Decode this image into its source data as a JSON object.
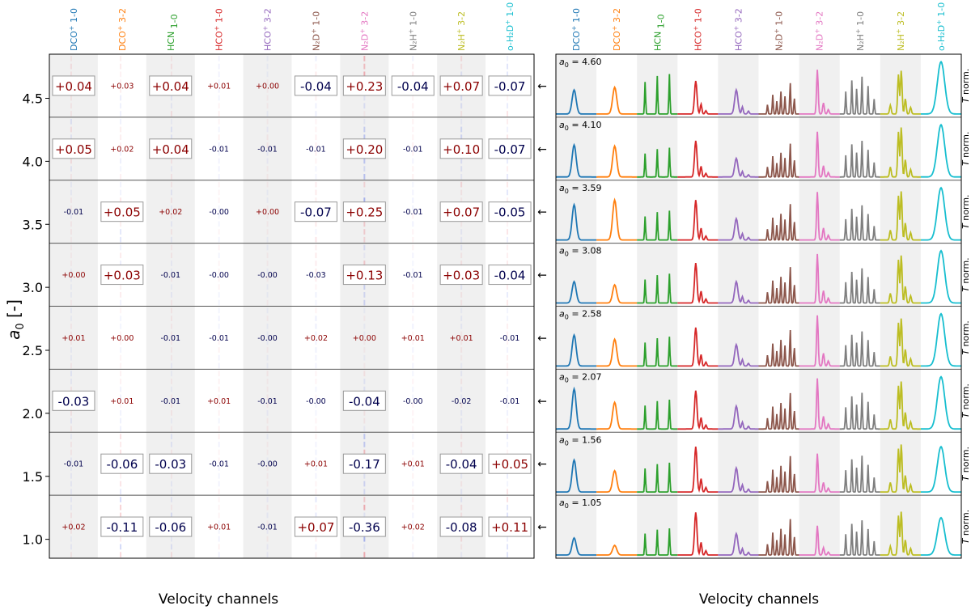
{
  "chart_data": [
    {
      "type": "heatmap",
      "panel": "left",
      "xlabel": "Velocity channels",
      "ylabel": "a0 [-]",
      "ylabel_main": "a",
      "ylabel_sub": "0",
      "ylabel_rest": " [-]",
      "ylim": [
        0.85,
        4.85
      ],
      "yticks": [
        "1.0",
        "1.5",
        "2.0",
        "2.5",
        "3.0",
        "3.5",
        "4.0",
        "4.5"
      ],
      "ytick_values": [
        1.0,
        1.5,
        2.0,
        2.5,
        3.0,
        3.5,
        4.0,
        4.5
      ],
      "lines": [
        {
          "base": "DCO",
          "sup": "+",
          "trans": "1-0",
          "color": "#1f77b4"
        },
        {
          "base": "DCO",
          "sup": "+",
          "trans": "3-2",
          "color": "#ff7f0e"
        },
        {
          "base": "HCN",
          "sup": "",
          "trans": "1-0",
          "color": "#2ca02c"
        },
        {
          "base": "HCO",
          "sup": "+",
          "trans": "1-0",
          "color": "#d62728"
        },
        {
          "base": "HCO",
          "sup": "+",
          "trans": "3-2",
          "color": "#9467bd"
        },
        {
          "base": "N₂D",
          "sup": "+",
          "trans": "1-0",
          "color": "#8c564b"
        },
        {
          "base": "N₂D",
          "sup": "+",
          "trans": "3-2",
          "color": "#e377c2"
        },
        {
          "base": "N₂H",
          "sup": "+",
          "trans": "1-0",
          "color": "#7f7f7f"
        },
        {
          "base": "N₂H",
          "sup": "+",
          "trans": "3-2",
          "color": "#bcbd22"
        },
        {
          "base": "o-H₂D",
          "sup": "+",
          "trans": "1-0",
          "color": "#17becf"
        }
      ],
      "rows": [
        {
          "a0": 4.6,
          "values": [
            "+0.04",
            "+0.03",
            "+0.04",
            "+0.01",
            "+0.00",
            "-0.04",
            "+0.23",
            "-0.04",
            "+0.07",
            "-0.07"
          ],
          "boxed": [
            1,
            0,
            1,
            0,
            0,
            1,
            1,
            1,
            1,
            1
          ]
        },
        {
          "a0": 4.1,
          "values": [
            "+0.05",
            "+0.02",
            "+0.04",
            "-0.01",
            "-0.01",
            "-0.01",
            "+0.20",
            "-0.01",
            "+0.10",
            "-0.07"
          ],
          "boxed": [
            1,
            0,
            1,
            0,
            0,
            0,
            1,
            0,
            1,
            1
          ]
        },
        {
          "a0": 3.59,
          "values": [
            "-0.01",
            "+0.05",
            "+0.02",
            "-0.00",
            "+0.00",
            "-0.07",
            "+0.25",
            "-0.01",
            "+0.07",
            "-0.05"
          ],
          "boxed": [
            0,
            1,
            0,
            0,
            0,
            1,
            1,
            0,
            1,
            1
          ]
        },
        {
          "a0": 3.08,
          "values": [
            "+0.00",
            "+0.03",
            "-0.01",
            "-0.00",
            "-0.00",
            "-0.03",
            "+0.13",
            "-0.01",
            "+0.03",
            "-0.04"
          ],
          "boxed": [
            0,
            1,
            0,
            0,
            0,
            0,
            1,
            0,
            1,
            1
          ]
        },
        {
          "a0": 2.58,
          "values": [
            "+0.01",
            "+0.00",
            "-0.01",
            "-0.01",
            "-0.00",
            "+0.02",
            "+0.00",
            "+0.01",
            "+0.01",
            "-0.01"
          ],
          "boxed": [
            0,
            0,
            0,
            0,
            0,
            0,
            0,
            0,
            0,
            0
          ]
        },
        {
          "a0": 2.07,
          "values": [
            "-0.03",
            "+0.01",
            "-0.01",
            "+0.01",
            "-0.01",
            "-0.00",
            "-0.04",
            "-0.00",
            "-0.02",
            "-0.01"
          ],
          "boxed": [
            1,
            0,
            0,
            0,
            0,
            0,
            1,
            0,
            0,
            0
          ]
        },
        {
          "a0": 1.56,
          "values": [
            "-0.01",
            "-0.06",
            "-0.03",
            "-0.01",
            "-0.00",
            "+0.01",
            "-0.17",
            "+0.01",
            "-0.04",
            "+0.05"
          ],
          "boxed": [
            0,
            1,
            1,
            0,
            0,
            0,
            1,
            0,
            1,
            1
          ]
        },
        {
          "a0": 1.05,
          "values": [
            "+0.02",
            "-0.11",
            "-0.06",
            "+0.01",
            "-0.01",
            "+0.07",
            "-0.36",
            "+0.02",
            "-0.08",
            "+0.11"
          ],
          "boxed": [
            0,
            1,
            1,
            0,
            0,
            1,
            1,
            0,
            1,
            1
          ]
        }
      ],
      "arrow_glyph": "←",
      "colors": {
        "positive": "#8b0000",
        "negative": "#00004d",
        "shade": "#f0f0f0",
        "frame": "#000000",
        "separator": "#555555"
      }
    },
    {
      "type": "line",
      "panel": "right",
      "xlabel": "Velocity channels",
      "ylabel_rest": " norm.",
      "ylabel_italic": "T",
      "row_label_main": "a",
      "row_label_sub": "0",
      "row_label_eq": " = ",
      "rows": [
        {
          "a0": "4.60",
          "peaks": [
            0.45,
            0.5,
            0.75,
            0.62,
            0.45,
            0.6,
            0.83,
            0.7,
            0.82,
            0.98
          ]
        },
        {
          "a0": "4.10",
          "peaks": [
            0.6,
            0.58,
            0.55,
            0.68,
            0.35,
            0.65,
            0.85,
            0.68,
            0.94,
            0.98
          ]
        },
        {
          "a0": "3.59",
          "peaks": [
            0.66,
            0.75,
            0.55,
            0.75,
            0.4,
            0.7,
            0.9,
            0.65,
            0.92,
            0.98
          ]
        },
        {
          "a0": "3.08",
          "peaks": [
            0.4,
            0.34,
            0.55,
            0.75,
            0.4,
            0.7,
            0.92,
            0.65,
            0.9,
            0.98
          ]
        },
        {
          "a0": "2.58",
          "peaks": [
            0.58,
            0.5,
            0.55,
            0.72,
            0.4,
            0.7,
            0.95,
            0.65,
            0.9,
            0.98
          ]
        },
        {
          "a0": "2.07",
          "peaks": [
            0.75,
            0.5,
            0.55,
            0.72,
            0.43,
            0.7,
            0.95,
            0.68,
            0.9,
            0.98
          ]
        },
        {
          "a0": "1.56",
          "peaks": [
            0.6,
            0.4,
            0.55,
            0.85,
            0.45,
            0.7,
            0.72,
            0.68,
            0.9,
            0.85
          ]
        },
        {
          "a0": "1.05",
          "peaks": [
            0.32,
            0.18,
            0.5,
            0.8,
            0.4,
            0.7,
            0.55,
            0.65,
            0.82,
            0.7
          ]
        }
      ]
    }
  ]
}
